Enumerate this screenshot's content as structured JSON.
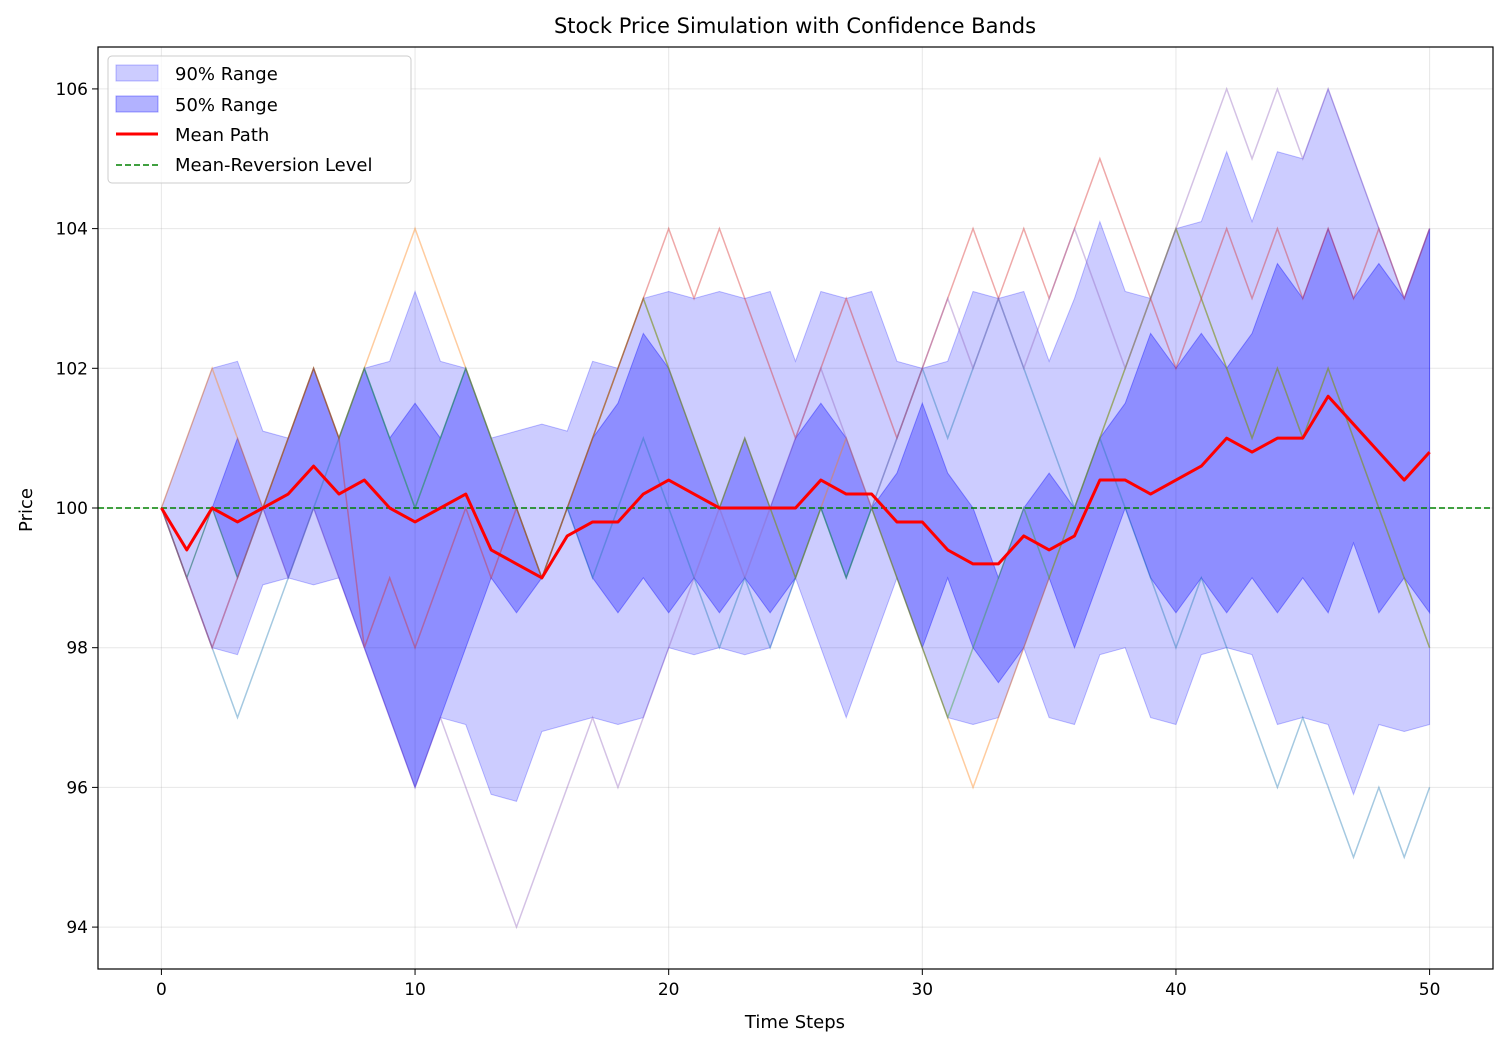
{
  "chart_data": {
    "type": "area",
    "title": "Stock Price Simulation with Confidence Bands",
    "xlabel": "Time Steps",
    "ylabel": "Price",
    "xlim": [
      -2.5,
      52.5
    ],
    "ylim": [
      93.4,
      106.6
    ],
    "xticks": [
      0,
      10,
      20,
      30,
      40,
      50
    ],
    "yticks": [
      94,
      96,
      98,
      100,
      102,
      104,
      106
    ],
    "grid": true,
    "legend_position": "top-left",
    "x": [
      0,
      1,
      2,
      3,
      4,
      5,
      6,
      7,
      8,
      9,
      10,
      11,
      12,
      13,
      14,
      15,
      16,
      17,
      18,
      19,
      20,
      21,
      22,
      23,
      24,
      25,
      26,
      27,
      28,
      29,
      30,
      31,
      32,
      33,
      34,
      35,
      36,
      37,
      38,
      39,
      40,
      41,
      42,
      43,
      44,
      45,
      46,
      47,
      48,
      49,
      50
    ],
    "bands": [
      {
        "name": "90% Range",
        "color": "#0000ff",
        "opacity": 0.2,
        "upper": [
          100,
          101,
          102,
          102.1,
          101.1,
          101,
          102,
          101,
          102,
          102.1,
          103.1,
          102.1,
          102,
          101,
          101.1,
          101.2,
          101.1,
          102.1,
          102,
          103,
          103.1,
          103,
          103.1,
          103,
          103.1,
          102.1,
          103.1,
          103,
          103.1,
          102.1,
          102,
          102.1,
          103.1,
          103,
          103.1,
          102.1,
          103,
          104.1,
          103.1,
          103,
          104,
          104.1,
          105.1,
          104.1,
          105.1,
          105,
          106,
          105,
          104,
          103,
          104
        ],
        "lower": [
          100,
          99,
          98,
          97.9,
          98.9,
          99,
          98.9,
          99,
          98,
          97,
          96,
          97,
          96.9,
          95.9,
          95.8,
          96.8,
          96.9,
          97,
          96.9,
          97,
          98,
          97.9,
          98,
          97.9,
          98,
          99,
          98,
          97,
          98,
          99,
          98,
          97,
          96.9,
          97,
          98,
          97,
          96.9,
          97.9,
          98,
          97,
          96.9,
          97.9,
          98,
          97.9,
          96.9,
          97,
          96.9,
          95.9,
          96.9,
          96.8,
          96.9
        ]
      },
      {
        "name": "50% Range",
        "color": "#0000ff",
        "opacity": 0.3,
        "upper": [
          100,
          99,
          100,
          101,
          100,
          101,
          102,
          101,
          102,
          101,
          101.5,
          101,
          102,
          101,
          100,
          99,
          100,
          101,
          101.5,
          102.5,
          102,
          101,
          100,
          101,
          100,
          101,
          101.5,
          101,
          100,
          100.5,
          101.5,
          100.5,
          100,
          99,
          100,
          100.5,
          100,
          101,
          101.5,
          102.5,
          102,
          102.5,
          102,
          102.5,
          103.5,
          103,
          104,
          103,
          103.5,
          103,
          104
        ],
        "lower": [
          100,
          99,
          100,
          99,
          100,
          99,
          100,
          99,
          98,
          97,
          96,
          97,
          98,
          99,
          98.5,
          99,
          100,
          99,
          98.5,
          99,
          98.5,
          99,
          98.5,
          99,
          98.5,
          99,
          100,
          99,
          100,
          99,
          98,
          99,
          98,
          97.5,
          98,
          99,
          98,
          99,
          100,
          99,
          98.5,
          99,
          98.5,
          99,
          98.5,
          99,
          98.5,
          99.5,
          98.5,
          99,
          98.5
        ]
      }
    ],
    "sample_paths": [
      {
        "color": "#1f77b4",
        "values": [
          100,
          99,
          98,
          97,
          98,
          99,
          100,
          101,
          102,
          101,
          100,
          101,
          102,
          101,
          100,
          99,
          100,
          99,
          100,
          101,
          100,
          99,
          98,
          99,
          98,
          99,
          100,
          99,
          100,
          101,
          102,
          101,
          102,
          103,
          102,
          101,
          100,
          101,
          100,
          99,
          98,
          99,
          98,
          97,
          96,
          97,
          96,
          95,
          96,
          95,
          96
        ]
      },
      {
        "color": "#ff7f0e",
        "values": [
          100,
          101,
          102,
          101,
          100,
          101,
          102,
          101,
          102,
          103,
          104,
          103,
          102,
          101,
          100,
          99,
          100,
          101,
          102,
          103,
          102,
          101,
          100,
          101,
          100,
          99,
          100,
          101,
          100,
          99,
          98,
          97,
          96,
          97,
          98,
          99,
          100,
          101,
          102,
          103,
          104,
          103,
          102,
          101,
          102,
          101,
          102,
          101,
          100,
          99,
          98
        ]
      },
      {
        "color": "#2ca02c",
        "values": [
          100,
          99,
          100,
          99,
          100,
          101,
          102,
          101,
          102,
          101,
          100,
          101,
          102,
          101,
          100,
          99,
          100,
          101,
          102,
          103,
          102,
          101,
          100,
          101,
          100,
          99,
          100,
          99,
          100,
          99,
          98,
          97,
          98,
          99,
          100,
          99,
          100,
          101,
          102,
          103,
          104,
          103,
          102,
          101,
          102,
          101,
          102,
          101,
          100,
          99,
          98
        ]
      },
      {
        "color": "#d62728",
        "values": [
          100,
          99,
          98,
          99,
          100,
          101,
          102,
          101,
          98,
          99,
          98,
          99,
          100,
          99,
          100,
          99,
          100,
          101,
          102,
          103,
          104,
          103,
          104,
          103,
          102,
          101,
          102,
          103,
          102,
          101,
          102,
          103,
          104,
          103,
          104,
          103,
          104,
          105,
          104,
          103,
          102,
          103,
          104,
          103,
          104,
          103,
          104,
          103,
          104,
          103,
          104
        ]
      },
      {
        "color": "#9467bd",
        "values": [
          100,
          99,
          98,
          99,
          100,
          99,
          100,
          99,
          98,
          97,
          96,
          97,
          96,
          95,
          94,
          95,
          96,
          97,
          96,
          97,
          98,
          99,
          100,
          99,
          100,
          101,
          102,
          101,
          100,
          101,
          102,
          103,
          102,
          103,
          102,
          103,
          104,
          103,
          102,
          103,
          104,
          105,
          106,
          105,
          106,
          105,
          106,
          105,
          104,
          103,
          104
        ]
      }
    ],
    "series": [
      {
        "name": "Mean Path",
        "color": "#ff0000",
        "values": [
          100,
          99.4,
          100,
          99.8,
          100,
          100.2,
          100.6,
          100.2,
          100.4,
          100,
          99.8,
          100,
          100.2,
          99.4,
          99.2,
          99,
          99.6,
          99.8,
          99.8,
          100.2,
          100.4,
          100.2,
          100,
          100,
          100,
          100,
          100.4,
          100.2,
          100.2,
          99.8,
          99.8,
          99.4,
          99.2,
          99.2,
          99.6,
          99.4,
          99.6,
          100.4,
          100.4,
          100.2,
          100.4,
          100.6,
          101,
          100.8,
          101,
          101,
          101.6,
          101.2,
          100.8,
          100.4,
          100.8
        ]
      }
    ],
    "hlines": [
      {
        "name": "Mean-Reversion Level",
        "y": 100,
        "color": "#008000",
        "style": "dashed"
      }
    ],
    "legend": [
      "90% Range",
      "50% Range",
      "Mean Path",
      "Mean-Reversion Level"
    ]
  }
}
